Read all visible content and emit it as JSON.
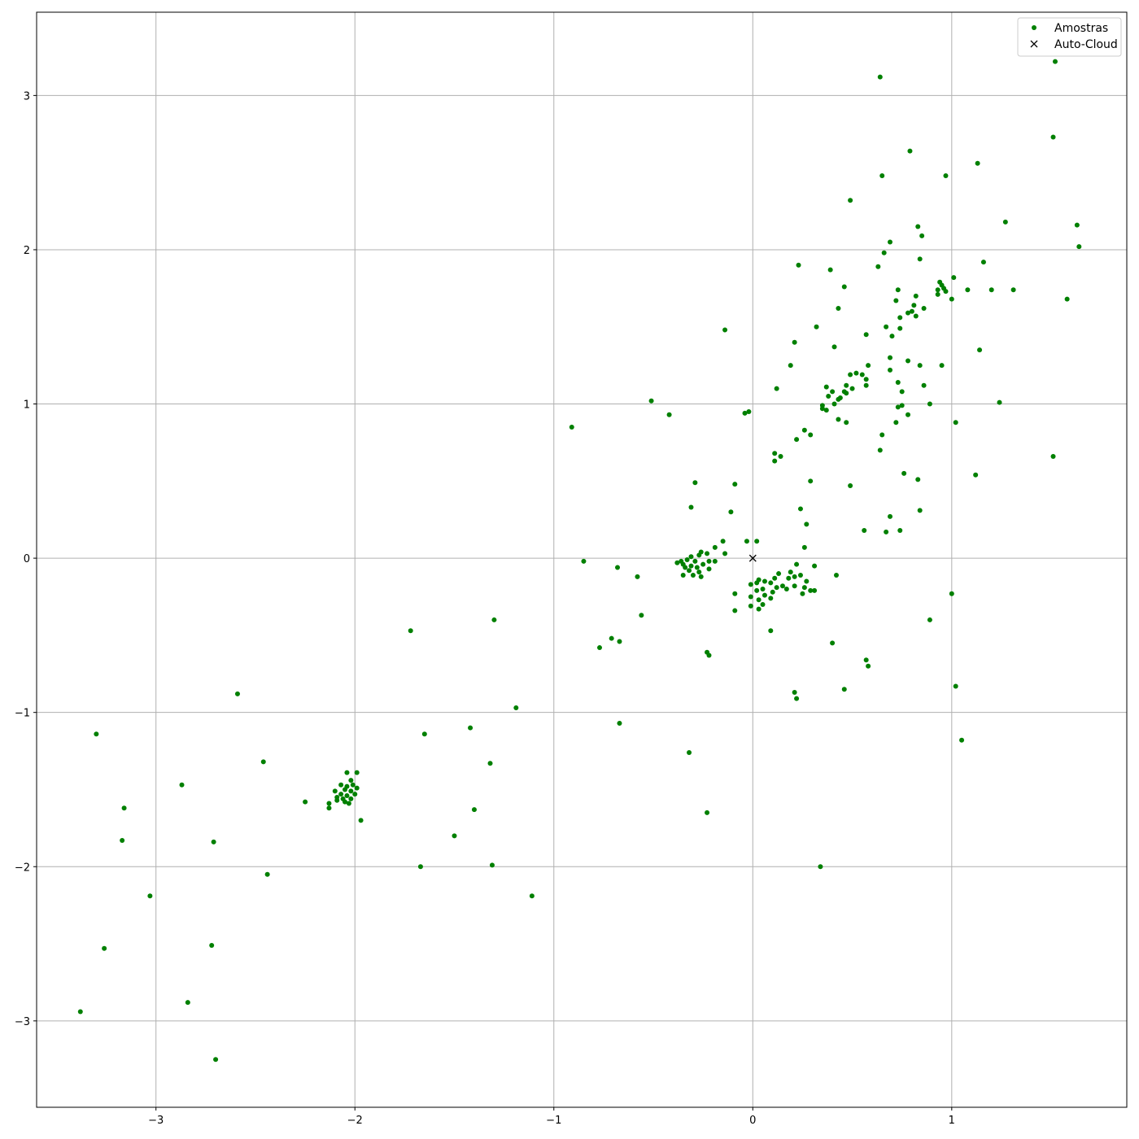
{
  "chart_data": {
    "type": "scatter",
    "title": "",
    "xlabel": "",
    "ylabel": "",
    "xlim": [
      -3.6,
      1.88
    ],
    "ylim": [
      -3.56,
      3.54
    ],
    "xticks": [
      -3,
      -2,
      -1,
      0,
      1
    ],
    "yticks": [
      -3,
      -2,
      -1,
      0,
      1,
      2,
      3
    ],
    "xtick_labels": [
      "−3",
      "−2",
      "−1",
      "0",
      "1"
    ],
    "ytick_labels": [
      "−3",
      "−2",
      "−1",
      "0",
      "1",
      "2",
      "3"
    ],
    "grid": true,
    "legend": {
      "placement": "top-right",
      "entries": [
        {
          "label": "Amostras",
          "marker": "dot",
          "color": "#008000"
        },
        {
          "label": "Auto-Cloud",
          "marker": "x",
          "color": "#000000"
        }
      ]
    },
    "series": [
      {
        "name": "Amostras",
        "marker": "dot",
        "color": "#008000",
        "points": [
          [
            0.64,
            3.12
          ],
          [
            1.52,
            3.22
          ],
          [
            1.51,
            2.73
          ],
          [
            0.79,
            2.64
          ],
          [
            1.13,
            2.56
          ],
          [
            0.65,
            2.48
          ],
          [
            0.97,
            2.48
          ],
          [
            0.49,
            2.32
          ],
          [
            1.27,
            2.18
          ],
          [
            1.63,
            2.16
          ],
          [
            0.83,
            2.15
          ],
          [
            0.85,
            2.09
          ],
          [
            1.64,
            2.02
          ],
          [
            0.69,
            2.05
          ],
          [
            0.66,
            1.98
          ],
          [
            1.16,
            1.92
          ],
          [
            0.84,
            1.94
          ],
          [
            0.23,
            1.9
          ],
          [
            0.63,
            1.89
          ],
          [
            0.39,
            1.87
          ],
          [
            1.01,
            1.82
          ],
          [
            0.94,
            1.79
          ],
          [
            0.95,
            1.77
          ],
          [
            0.46,
            1.76
          ],
          [
            0.96,
            1.75
          ],
          [
            0.93,
            1.74
          ],
          [
            1.08,
            1.74
          ],
          [
            1.2,
            1.74
          ],
          [
            1.31,
            1.74
          ],
          [
            0.73,
            1.74
          ],
          [
            0.97,
            1.73
          ],
          [
            0.93,
            1.71
          ],
          [
            0.82,
            1.7
          ],
          [
            1.0,
            1.68
          ],
          [
            1.58,
            1.68
          ],
          [
            0.72,
            1.67
          ],
          [
            0.81,
            1.64
          ],
          [
            0.43,
            1.62
          ],
          [
            0.86,
            1.62
          ],
          [
            0.78,
            1.59
          ],
          [
            0.8,
            1.6
          ],
          [
            0.82,
            1.57
          ],
          [
            0.74,
            1.56
          ],
          [
            0.74,
            1.49
          ],
          [
            0.67,
            1.5
          ],
          [
            0.32,
            1.5
          ],
          [
            -0.14,
            1.48
          ],
          [
            0.7,
            1.44
          ],
          [
            0.57,
            1.45
          ],
          [
            0.21,
            1.4
          ],
          [
            0.41,
            1.37
          ],
          [
            1.14,
            1.35
          ],
          [
            0.69,
            1.3
          ],
          [
            0.78,
            1.28
          ],
          [
            0.95,
            1.25
          ],
          [
            0.84,
            1.25
          ],
          [
            0.58,
            1.25
          ],
          [
            0.19,
            1.25
          ],
          [
            0.69,
            1.22
          ],
          [
            0.52,
            1.2
          ],
          [
            0.49,
            1.19
          ],
          [
            0.55,
            1.19
          ],
          [
            0.57,
            1.16
          ],
          [
            0.73,
            1.14
          ],
          [
            0.86,
            1.12
          ],
          [
            0.57,
            1.12
          ],
          [
            0.47,
            1.12
          ],
          [
            0.37,
            1.11
          ],
          [
            0.5,
            1.1
          ],
          [
            0.12,
            1.1
          ],
          [
            0.75,
            1.08
          ],
          [
            0.46,
            1.08
          ],
          [
            0.4,
            1.08
          ],
          [
            0.47,
            1.07
          ],
          [
            0.38,
            1.05
          ],
          [
            0.43,
            1.03
          ],
          [
            0.41,
            1.0
          ],
          [
            0.44,
            1.04
          ],
          [
            0.73,
            0.98
          ],
          [
            0.75,
            0.99
          ],
          [
            0.89,
            1.0
          ],
          [
            1.24,
            1.01
          ],
          [
            0.35,
            0.97
          ],
          [
            0.37,
            0.96
          ],
          [
            0.35,
            0.99
          ],
          [
            -0.51,
            1.02
          ],
          [
            -0.42,
            0.93
          ],
          [
            -0.02,
            0.95
          ],
          [
            -0.04,
            0.94
          ],
          [
            0.78,
            0.93
          ],
          [
            0.43,
            0.9
          ],
          [
            0.72,
            0.88
          ],
          [
            0.47,
            0.88
          ],
          [
            1.02,
            0.88
          ],
          [
            -0.91,
            0.85
          ],
          [
            0.26,
            0.83
          ],
          [
            0.65,
            0.8
          ],
          [
            0.29,
            0.8
          ],
          [
            0.22,
            0.77
          ],
          [
            0.64,
            0.7
          ],
          [
            0.11,
            0.68
          ],
          [
            0.14,
            0.66
          ],
          [
            1.51,
            0.66
          ],
          [
            0.11,
            0.63
          ],
          [
            0.76,
            0.55
          ],
          [
            1.12,
            0.54
          ],
          [
            0.83,
            0.51
          ],
          [
            0.29,
            0.5
          ],
          [
            -0.29,
            0.49
          ],
          [
            0.49,
            0.47
          ],
          [
            -0.09,
            0.48
          ],
          [
            0.84,
            0.31
          ],
          [
            -0.31,
            0.33
          ],
          [
            0.24,
            0.32
          ],
          [
            -0.11,
            0.3
          ],
          [
            0.69,
            0.27
          ],
          [
            0.27,
            0.22
          ],
          [
            0.56,
            0.18
          ],
          [
            0.67,
            0.17
          ],
          [
            0.74,
            0.18
          ],
          [
            -0.03,
            0.11
          ],
          [
            0.02,
            0.11
          ],
          [
            -0.15,
            0.11
          ],
          [
            -0.19,
            0.07
          ],
          [
            0.26,
            0.07
          ],
          [
            -0.14,
            0.03
          ],
          [
            -0.26,
            0.04
          ],
          [
            -0.23,
            0.03
          ],
          [
            -0.31,
            0.01
          ],
          [
            -0.27,
            0.02
          ],
          [
            -0.29,
            -0.02
          ],
          [
            -0.33,
            -0.01
          ],
          [
            -0.36,
            -0.02
          ],
          [
            -0.38,
            -0.03
          ],
          [
            -0.35,
            -0.04
          ],
          [
            -0.22,
            -0.02
          ],
          [
            -0.19,
            -0.02
          ],
          [
            -0.25,
            -0.04
          ],
          [
            -0.31,
            -0.05
          ],
          [
            -0.28,
            -0.06
          ],
          [
            -0.34,
            -0.06
          ],
          [
            -0.32,
            -0.08
          ],
          [
            -0.22,
            -0.07
          ],
          [
            -0.27,
            -0.09
          ],
          [
            -0.35,
            -0.11
          ],
          [
            -0.3,
            -0.11
          ],
          [
            -0.26,
            -0.12
          ],
          [
            -0.85,
            -0.02
          ],
          [
            -0.68,
            -0.06
          ],
          [
            0.31,
            -0.05
          ],
          [
            0.22,
            -0.04
          ],
          [
            0.13,
            -0.1
          ],
          [
            0.19,
            -0.09
          ],
          [
            0.21,
            -0.12
          ],
          [
            0.24,
            -0.11
          ],
          [
            0.18,
            -0.13
          ],
          [
            0.27,
            -0.15
          ],
          [
            0.11,
            -0.13
          ],
          [
            0.06,
            -0.15
          ],
          [
            0.03,
            -0.14
          ],
          [
            0.02,
            -0.16
          ],
          [
            -0.01,
            -0.17
          ],
          [
            0.09,
            -0.16
          ],
          [
            0.15,
            -0.18
          ],
          [
            0.21,
            -0.18
          ],
          [
            0.26,
            -0.19
          ],
          [
            0.29,
            -0.21
          ],
          [
            0.31,
            -0.21
          ],
          [
            0.05,
            -0.2
          ],
          [
            0.12,
            -0.19
          ],
          [
            0.17,
            -0.2
          ],
          [
            0.1,
            -0.22
          ],
          [
            0.02,
            -0.21
          ],
          [
            0.06,
            -0.24
          ],
          [
            0.09,
            -0.26
          ],
          [
            -0.01,
            -0.25
          ],
          [
            0.03,
            -0.27
          ],
          [
            0.05,
            -0.3
          ],
          [
            -0.01,
            -0.31
          ],
          [
            0.03,
            -0.33
          ],
          [
            0.42,
            -0.11
          ],
          [
            0.25,
            -0.23
          ],
          [
            -0.58,
            -0.12
          ],
          [
            -0.09,
            -0.23
          ],
          [
            -0.09,
            -0.34
          ],
          [
            1.0,
            -0.23
          ],
          [
            -0.56,
            -0.37
          ],
          [
            -1.3,
            -0.4
          ],
          [
            0.89,
            -0.4
          ],
          [
            0.09,
            -0.47
          ],
          [
            -1.72,
            -0.47
          ],
          [
            -0.71,
            -0.52
          ],
          [
            -0.67,
            -0.54
          ],
          [
            0.4,
            -0.55
          ],
          [
            -0.77,
            -0.58
          ],
          [
            -0.23,
            -0.61
          ],
          [
            -0.22,
            -0.63
          ],
          [
            0.57,
            -0.66
          ],
          [
            0.58,
            -0.7
          ],
          [
            1.02,
            -0.83
          ],
          [
            0.46,
            -0.85
          ],
          [
            0.21,
            -0.87
          ],
          [
            0.22,
            -0.91
          ],
          [
            -2.59,
            -0.88
          ],
          [
            -1.19,
            -0.97
          ],
          [
            -0.67,
            -1.07
          ],
          [
            -1.42,
            -1.1
          ],
          [
            -3.3,
            -1.14
          ],
          [
            -1.65,
            -1.14
          ],
          [
            1.05,
            -1.18
          ],
          [
            -0.32,
            -1.26
          ],
          [
            -2.46,
            -1.32
          ],
          [
            -1.32,
            -1.33
          ],
          [
            -2.04,
            -1.39
          ],
          [
            -1.99,
            -1.39
          ],
          [
            -2.02,
            -1.44
          ],
          [
            -2.07,
            -1.47
          ],
          [
            -2.04,
            -1.48
          ],
          [
            -2.01,
            -1.47
          ],
          [
            -1.99,
            -1.49
          ],
          [
            -2.05,
            -1.5
          ],
          [
            -2.1,
            -1.51
          ],
          [
            -2.02,
            -1.51
          ],
          [
            -2.07,
            -1.53
          ],
          [
            -2.04,
            -1.54
          ],
          [
            -2.09,
            -1.55
          ],
          [
            -2.0,
            -1.53
          ],
          [
            -2.06,
            -1.56
          ],
          [
            -2.02,
            -1.56
          ],
          [
            -2.09,
            -1.57
          ],
          [
            -2.05,
            -1.58
          ],
          [
            -2.03,
            -1.59
          ],
          [
            -2.13,
            -1.59
          ],
          [
            -2.13,
            -1.62
          ],
          [
            -1.97,
            -1.7
          ],
          [
            -2.87,
            -1.47
          ],
          [
            -2.25,
            -1.58
          ],
          [
            -3.16,
            -1.62
          ],
          [
            -1.4,
            -1.63
          ],
          [
            -0.23,
            -1.65
          ],
          [
            -1.5,
            -1.8
          ],
          [
            -3.17,
            -1.83
          ],
          [
            -2.71,
            -1.84
          ],
          [
            -1.67,
            -2.0
          ],
          [
            -1.31,
            -1.99
          ],
          [
            0.34,
            -2.0
          ],
          [
            -2.44,
            -2.05
          ],
          [
            -3.03,
            -2.19
          ],
          [
            -1.11,
            -2.19
          ],
          [
            -2.72,
            -2.51
          ],
          [
            -3.26,
            -2.53
          ],
          [
            -2.84,
            -2.88
          ],
          [
            -3.38,
            -2.94
          ],
          [
            -2.7,
            -3.25
          ]
        ]
      },
      {
        "name": "Auto-Cloud",
        "marker": "x",
        "color": "#000000",
        "points": [
          [
            0,
            0
          ]
        ]
      }
    ]
  }
}
